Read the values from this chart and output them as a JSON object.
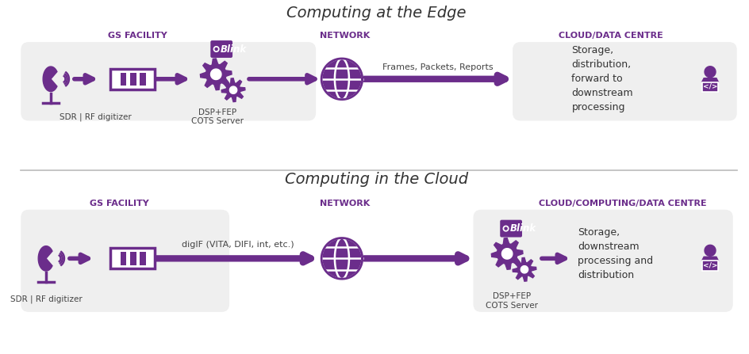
{
  "bg_color": "#ffffff",
  "panel_color": "#efefef",
  "purple": "#6b2d8b",
  "arrow_color": "#6b2d8b",
  "title_top": "Computing at the Edge",
  "title_bottom": "Computing in the Cloud",
  "section_labels_top": [
    "GS FACILITY",
    "NETWORK",
    "CLOUD/DATA CENTRE"
  ],
  "section_labels_bottom": [
    "GS FACILITY",
    "NETWORK",
    "CLOUD/COMPUTING/DATA CENTRE"
  ],
  "arrow_label_top": "Frames, Packets, Reports",
  "arrow_label_bottom": "digIF (VITA, DIFI, int, etc.)",
  "text_top_right": "Storage,\ndistribution,\nforward to\ndownstream\nprocessing",
  "text_bottom_right": "Storage,\ndownstream\nprocessing and\ndistribution",
  "label_dsp_top": "DSP+FEP\nCOTS Server",
  "label_sdr_top": "SDR | RF digitizer",
  "label_dsp_bottom": "DSP+FEP\nCOTS Server",
  "label_sdr_bottom": "SDR | RF digitizer"
}
